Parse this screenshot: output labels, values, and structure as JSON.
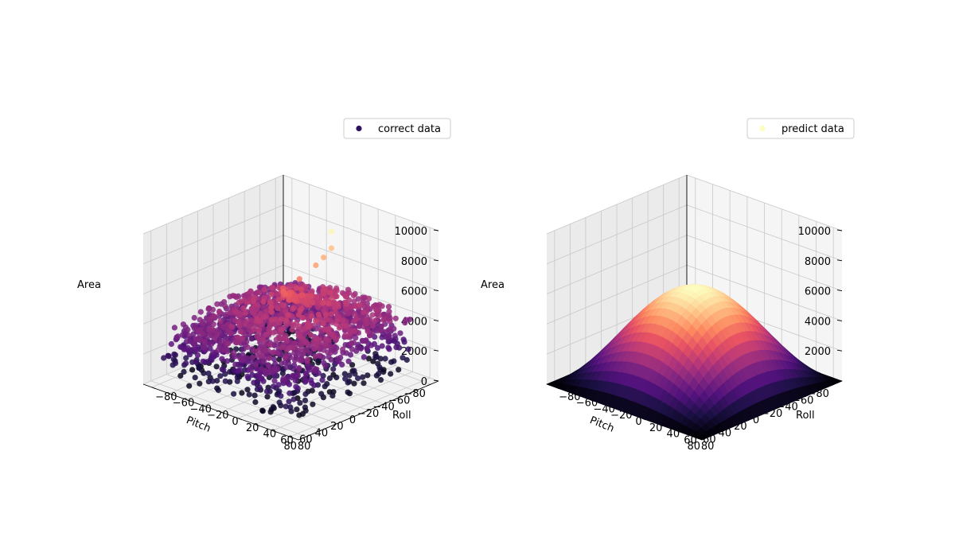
{
  "chart_data": [
    {
      "type": "scatter3d",
      "legend": {
        "label": "correct data",
        "marker_color": "#2c115f",
        "position": "top-right"
      },
      "axes": {
        "xlabel": "Pitch",
        "ylabel": "Roll",
        "zlabel": "Area",
        "xlim": [
          -90,
          90
        ],
        "ylim": [
          -90,
          90
        ],
        "zlim": [
          0,
          10000
        ],
        "xticks": [
          -80,
          -60,
          -40,
          -20,
          0,
          20,
          40,
          60,
          80
        ],
        "yticks": [
          -80,
          -60,
          -40,
          -20,
          0,
          20,
          40,
          60,
          80
        ],
        "zticks": [
          0,
          2000,
          4000,
          6000,
          8000,
          10000
        ],
        "grid": true
      },
      "colormap": "magma",
      "points_summary": "roughly 3000 points; most Area values between 1000 and 6000 over Pitch -80..80 and Roll -80..60; a few outliers up to 10000 near Pitch -30, Roll 20",
      "highlights": [
        {
          "pitch": -30,
          "roll": 20,
          "area": 9800
        },
        {
          "pitch": -30,
          "roll": 20,
          "area": 8700
        },
        {
          "pitch": -20,
          "roll": 20,
          "area": 8300
        },
        {
          "pitch": -10,
          "roll": 20,
          "area": 8000
        },
        {
          "pitch": 0,
          "roll": 10,
          "area": 7100
        },
        {
          "pitch": 10,
          "roll": 0,
          "area": 6500
        }
      ]
    },
    {
      "type": "surface3d",
      "legend": {
        "label": "predict data",
        "marker_color": "#fcfdbf",
        "position": "top-right"
      },
      "axes": {
        "xlabel": "Pitch",
        "ylabel": "Roll",
        "zlabel": "Area",
        "xlim": [
          -90,
          90
        ],
        "ylim": [
          -90,
          90
        ],
        "zlim": [
          0,
          10000
        ],
        "xticks": [
          -80,
          -60,
          -40,
          -20,
          0,
          20,
          40,
          60,
          80
        ],
        "yticks": [
          -80,
          -60,
          -40,
          -20,
          0,
          20,
          40,
          60,
          80
        ],
        "zticks": [
          0,
          2000,
          4000,
          6000,
          8000,
          10000
        ],
        "grid": true
      },
      "colormap": "magma",
      "surface": {
        "peak_area": 6300,
        "peak_pitch": 0,
        "peak_roll": 0,
        "edge_area": 0
      }
    }
  ]
}
